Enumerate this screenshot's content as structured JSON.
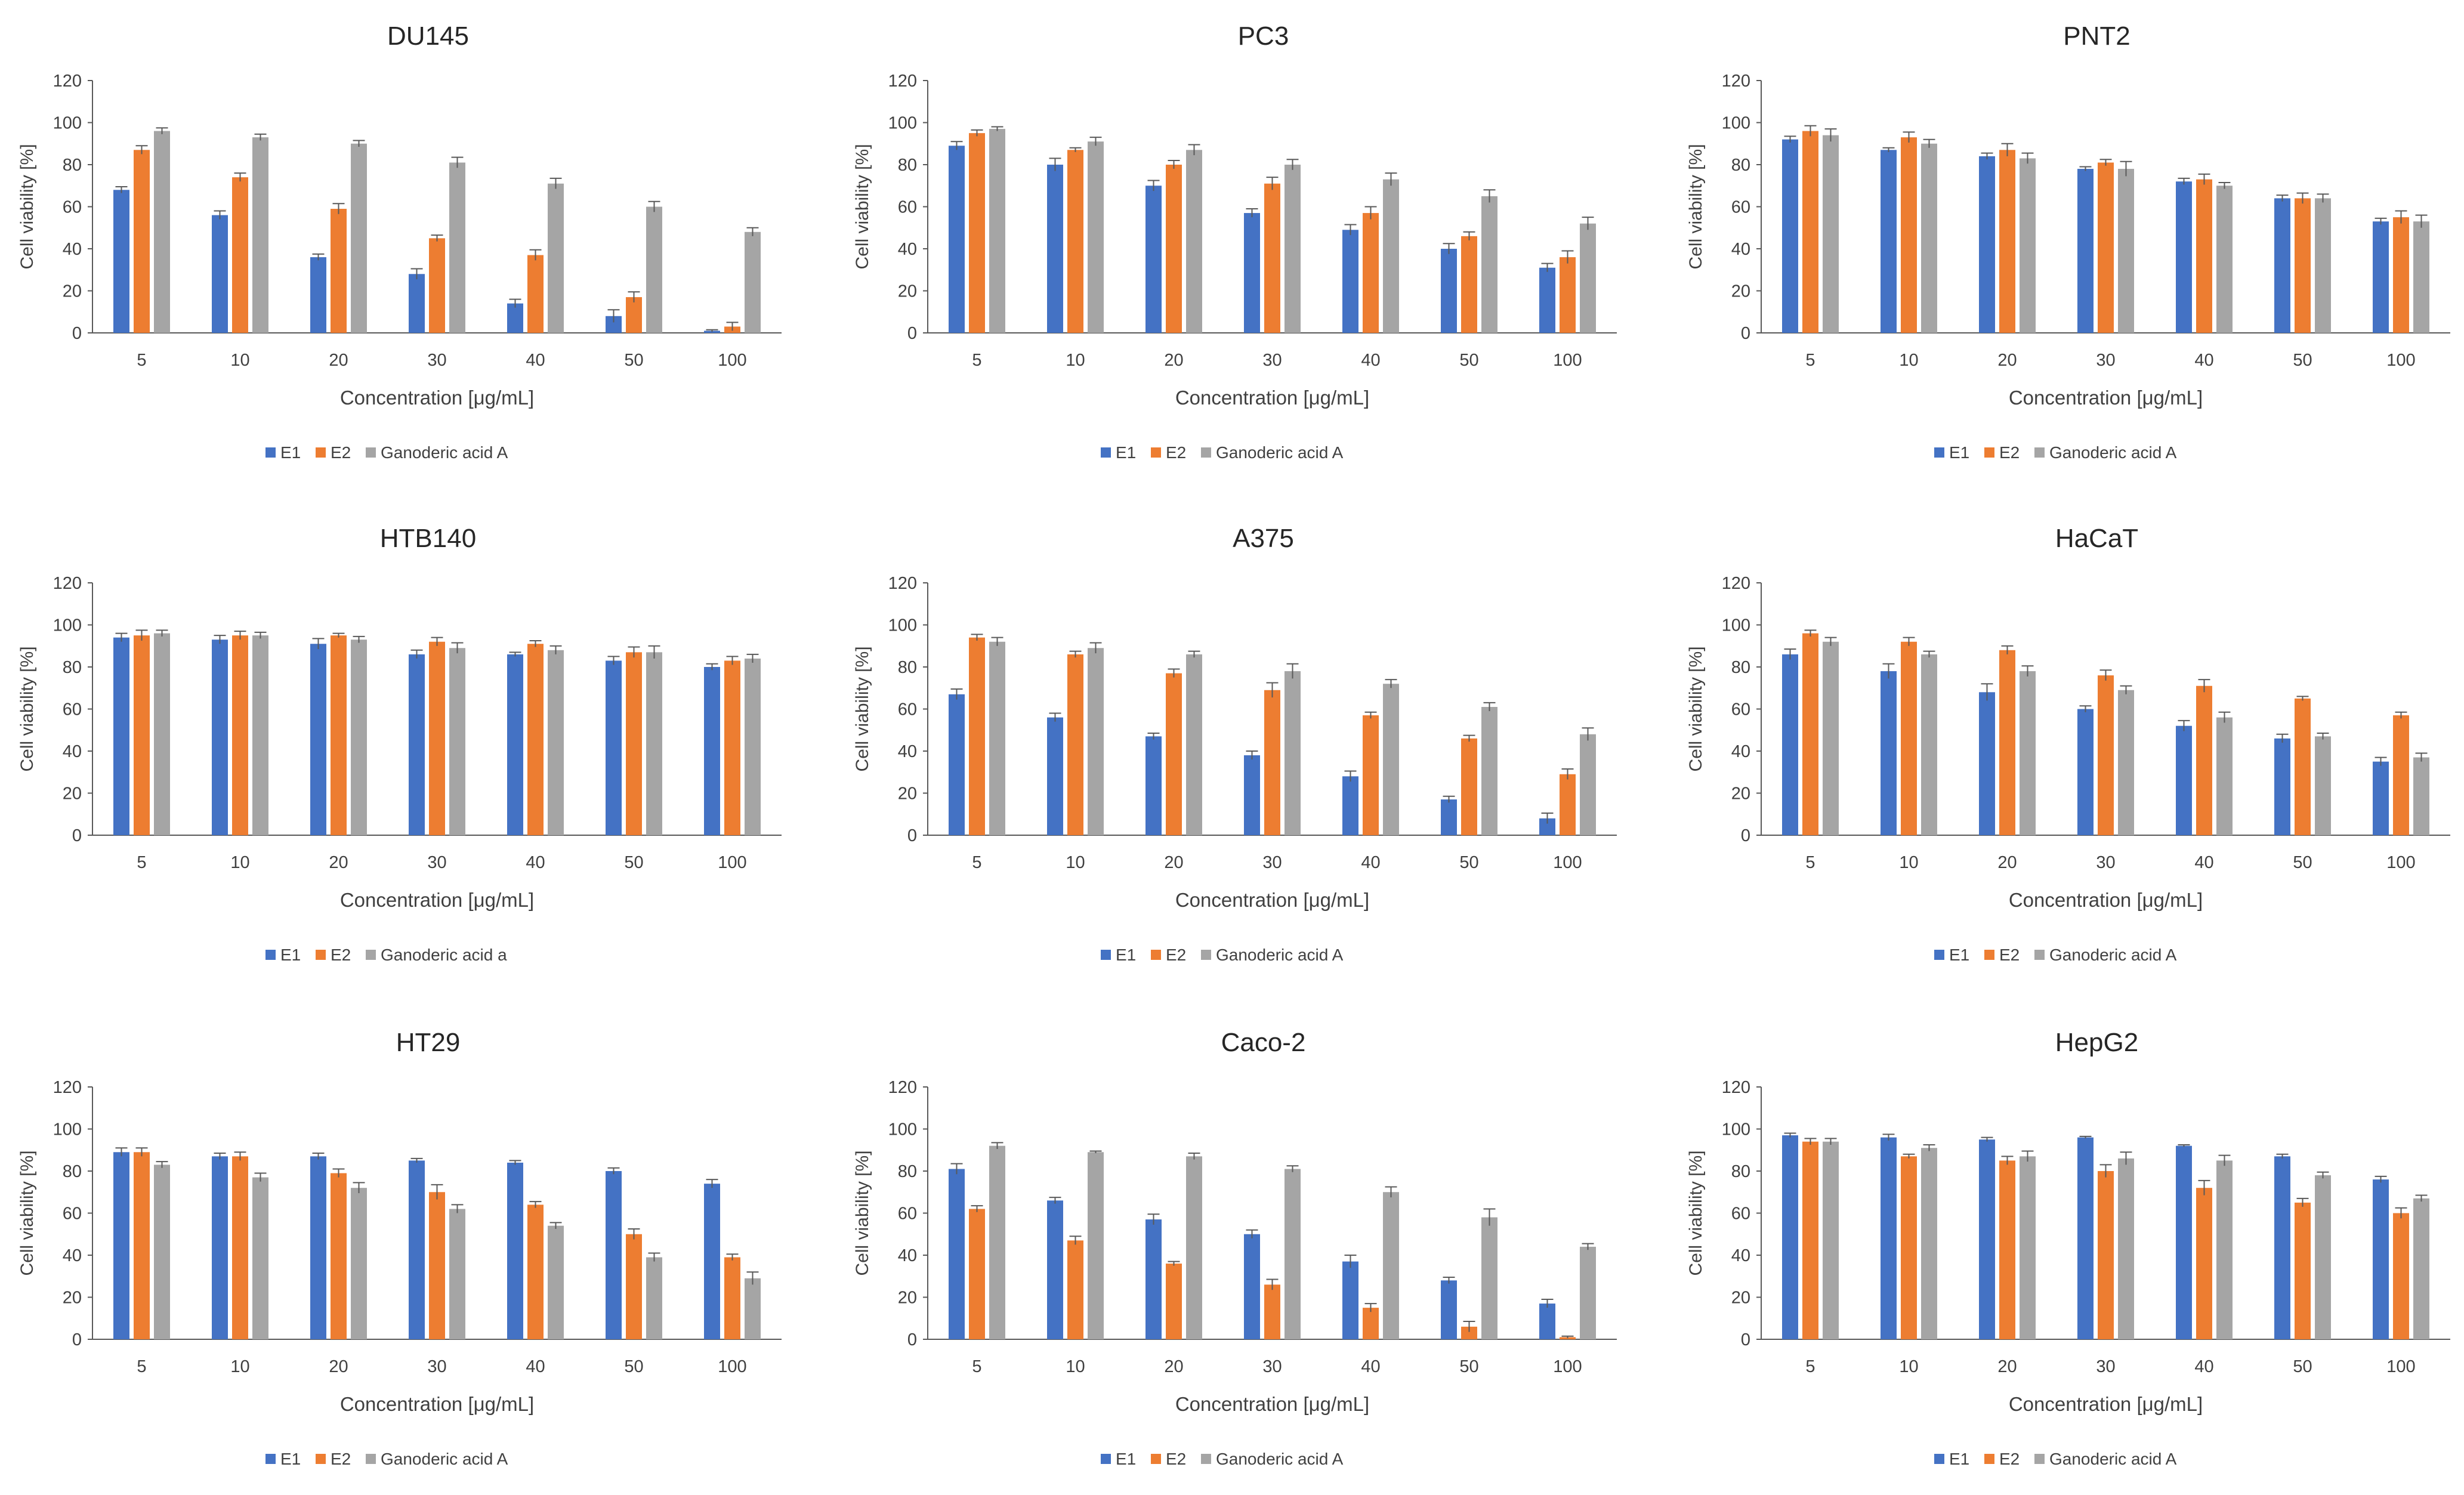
{
  "figure": {
    "colors": {
      "E1": "#4472c4",
      "E2": "#ed7d31",
      "Ganoderic acid A": "#a5a5a5",
      "axis": "#595959",
      "error": "#595959"
    }
  },
  "chart_data": [
    {
      "type": "bar",
      "title": "DU145",
      "categories": [
        "5",
        "10",
        "20",
        "30",
        "40",
        "50",
        "100"
      ],
      "series": [
        {
          "name": "E1",
          "values": [
            68,
            56,
            36,
            28,
            14,
            8,
            1
          ],
          "errors": [
            1.5,
            2,
            1.5,
            2.5,
            2,
            3,
            0.5
          ]
        },
        {
          "name": "E2",
          "values": [
            87,
            74,
            59,
            45,
            37,
            17,
            3
          ],
          "errors": [
            2,
            2,
            2.5,
            1.5,
            2.5,
            2.5,
            2
          ]
        },
        {
          "name": "Ganoderic acid A",
          "values": [
            96,
            93,
            90,
            81,
            71,
            60,
            48
          ],
          "errors": [
            1.5,
            1.5,
            1.5,
            2.5,
            2.5,
            2.5,
            2
          ]
        }
      ],
      "xlabel": "Concentration [μg/mL]",
      "ylabel": "Cell viability [%]",
      "ylim": [
        0,
        120
      ],
      "yticks": [
        "0",
        "20",
        "40",
        "60",
        "80",
        "100",
        "120"
      ]
    },
    {
      "type": "bar",
      "title": "PC3",
      "categories": [
        "5",
        "10",
        "20",
        "30",
        "40",
        "50",
        "100"
      ],
      "series": [
        {
          "name": "E1",
          "values": [
            89,
            80,
            70,
            57,
            49,
            40,
            31
          ],
          "errors": [
            2,
            3,
            2.5,
            2,
            2.5,
            2.5,
            2
          ]
        },
        {
          "name": "E2",
          "values": [
            95,
            87,
            80,
            71,
            57,
            46,
            36
          ],
          "errors": [
            1.5,
            1,
            2,
            3,
            3,
            2,
            3
          ]
        },
        {
          "name": "Ganoderic acid A",
          "values": [
            97,
            91,
            87,
            80,
            73,
            65,
            52
          ],
          "errors": [
            1,
            2,
            2.5,
            2.5,
            3,
            3,
            3
          ]
        }
      ],
      "xlabel": "Concentration [μg/mL]",
      "ylabel": "Cell viability [%]",
      "ylim": [
        0,
        120
      ],
      "yticks": [
        "0",
        "20",
        "40",
        "60",
        "80",
        "100",
        "120"
      ]
    },
    {
      "type": "bar",
      "title": "PNT2",
      "categories": [
        "5",
        "10",
        "20",
        "30",
        "40",
        "50",
        "100"
      ],
      "series": [
        {
          "name": "E1",
          "values": [
            92,
            87,
            84,
            78,
            72,
            64,
            53
          ],
          "errors": [
            1.5,
            1,
            1.5,
            1,
            1.5,
            1.5,
            1.5
          ]
        },
        {
          "name": "E2",
          "values": [
            96,
            93,
            87,
            81,
            73,
            64,
            55
          ],
          "errors": [
            2.5,
            2.5,
            3,
            1.5,
            2.5,
            2.5,
            3
          ]
        },
        {
          "name": "Ganoderic acid A",
          "values": [
            94,
            90,
            83,
            78,
            70,
            64,
            53
          ],
          "errors": [
            3,
            2,
            2.5,
            3.5,
            1.5,
            2,
            3
          ]
        }
      ],
      "xlabel": "Concentration [μg/mL]",
      "ylabel": "Cell viability [%]",
      "ylim": [
        0,
        120
      ],
      "yticks": [
        "0",
        "20",
        "40",
        "60",
        "80",
        "100",
        "120"
      ]
    },
    {
      "type": "bar",
      "title": "HTB140",
      "categories": [
        "5",
        "10",
        "20",
        "30",
        "40",
        "50",
        "100"
      ],
      "series": [
        {
          "name": "E1",
          "values": [
            94,
            93,
            91,
            86,
            86,
            83,
            80
          ],
          "errors": [
            2,
            2,
            2.5,
            2,
            1,
            2,
            1.5
          ]
        },
        {
          "name": "E2",
          "values": [
            95,
            95,
            95,
            92,
            91,
            87,
            83
          ],
          "errors": [
            2.5,
            2,
            1,
            2,
            1.5,
            2.5,
            2
          ]
        },
        {
          "name": "Ganoderic acid a",
          "values": [
            96,
            95,
            93,
            89,
            88,
            87,
            84
          ],
          "errors": [
            1.5,
            1.5,
            1.5,
            2.5,
            2,
            3,
            2
          ]
        }
      ],
      "xlabel": "Concentration [μg/mL]",
      "ylabel": "Cell viability [%]",
      "ylim": [
        0,
        120
      ],
      "yticks": [
        "0",
        "20",
        "40",
        "60",
        "80",
        "100",
        "120"
      ]
    },
    {
      "type": "bar",
      "title": "A375",
      "categories": [
        "5",
        "10",
        "20",
        "30",
        "40",
        "50",
        "100"
      ],
      "series": [
        {
          "name": "E1",
          "values": [
            67,
            56,
            47,
            38,
            28,
            17,
            8
          ],
          "errors": [
            2.5,
            2,
            1.5,
            2,
            2.5,
            1.5,
            2.5
          ]
        },
        {
          "name": "E2",
          "values": [
            94,
            86,
            77,
            69,
            57,
            46,
            29
          ],
          "errors": [
            1.5,
            1.5,
            2,
            3.5,
            1.5,
            1.5,
            2.5
          ]
        },
        {
          "name": "Ganoderic acid A",
          "values": [
            92,
            89,
            86,
            78,
            72,
            61,
            48
          ],
          "errors": [
            2,
            2.5,
            1.5,
            3.5,
            2,
            2,
            3
          ]
        }
      ],
      "xlabel": "Concentration [μg/mL]",
      "ylabel": "Cell viability [%]",
      "ylim": [
        0,
        120
      ],
      "yticks": [
        "0",
        "20",
        "40",
        "60",
        "80",
        "100",
        "120"
      ]
    },
    {
      "type": "bar",
      "title": "HaCaT",
      "categories": [
        "5",
        "10",
        "20",
        "30",
        "40",
        "50",
        "100"
      ],
      "series": [
        {
          "name": "E1",
          "values": [
            86,
            78,
            68,
            60,
            52,
            46,
            35
          ],
          "errors": [
            2.5,
            3.5,
            4,
            1.5,
            2.5,
            2,
            2
          ]
        },
        {
          "name": "E2",
          "values": [
            96,
            92,
            88,
            76,
            71,
            65,
            57
          ],
          "errors": [
            1.5,
            2,
            2,
            2.5,
            3,
            1,
            1.5
          ]
        },
        {
          "name": "Ganoderic acid A",
          "values": [
            92,
            86,
            78,
            69,
            56,
            47,
            37
          ],
          "errors": [
            2,
            1.5,
            2.5,
            2,
            2.5,
            1.5,
            2
          ]
        }
      ],
      "xlabel": "Concentration [μg/mL]",
      "ylabel": "Cell viability [%]",
      "ylim": [
        0,
        120
      ],
      "yticks": [
        "0",
        "20",
        "40",
        "60",
        "80",
        "100",
        "120"
      ]
    },
    {
      "type": "bar",
      "title": "HT29",
      "categories": [
        "5",
        "10",
        "20",
        "30",
        "40",
        "50",
        "100"
      ],
      "series": [
        {
          "name": "E1",
          "values": [
            89,
            87,
            87,
            85,
            84,
            80,
            74
          ],
          "errors": [
            2,
            1.5,
            1.5,
            1,
            1,
            1.5,
            2
          ]
        },
        {
          "name": "E2",
          "values": [
            89,
            87,
            79,
            70,
            64,
            50,
            39
          ],
          "errors": [
            2,
            2,
            2,
            3.5,
            1.5,
            2.5,
            1.5
          ]
        },
        {
          "name": "Ganoderic acid A",
          "values": [
            83,
            77,
            72,
            62,
            54,
            39,
            29
          ],
          "errors": [
            1.5,
            2,
            2.5,
            2,
            1.5,
            2,
            3
          ]
        }
      ],
      "xlabel": "Concentration [μg/mL]",
      "ylabel": "Cell viability [%]",
      "ylim": [
        0,
        120
      ],
      "yticks": [
        "0",
        "20",
        "40",
        "60",
        "80",
        "100",
        "120"
      ]
    },
    {
      "type": "bar",
      "title": "Caco-2",
      "categories": [
        "5",
        "10",
        "20",
        "30",
        "40",
        "50",
        "100"
      ],
      "series": [
        {
          "name": "E1",
          "values": [
            81,
            66,
            57,
            50,
            37,
            28,
            17
          ],
          "errors": [
            2.5,
            1.5,
            2.5,
            2,
            3,
            1.5,
            2
          ]
        },
        {
          "name": "E2",
          "values": [
            62,
            47,
            36,
            26,
            15,
            6,
            1
          ],
          "errors": [
            1.5,
            2,
            1,
            2.5,
            2,
            2.5,
            0.5
          ]
        },
        {
          "name": "Ganoderic acid A",
          "values": [
            92,
            89,
            87,
            81,
            70,
            58,
            44
          ],
          "errors": [
            1.5,
            0.5,
            1.5,
            1.5,
            2.5,
            4,
            1.5
          ]
        }
      ],
      "xlabel": "Concentration [μg/mL]",
      "ylabel": "Cell viability [%]",
      "ylim": [
        0,
        120
      ],
      "yticks": [
        "0",
        "20",
        "40",
        "60",
        "80",
        "100",
        "120"
      ]
    },
    {
      "type": "bar",
      "title": "HepG2",
      "categories": [
        "5",
        "10",
        "20",
        "30",
        "40",
        "50",
        "100"
      ],
      "series": [
        {
          "name": "E1",
          "values": [
            97,
            96,
            95,
            96,
            92,
            87,
            76
          ],
          "errors": [
            1,
            1.5,
            1,
            0.5,
            0.5,
            1,
            1.5
          ]
        },
        {
          "name": "E2",
          "values": [
            94,
            87,
            85,
            80,
            72,
            65,
            60
          ],
          "errors": [
            1.5,
            1,
            2,
            3,
            3.5,
            2,
            2.5
          ]
        },
        {
          "name": "Ganoderic acid A",
          "values": [
            94,
            91,
            87,
            86,
            85,
            78,
            67
          ],
          "errors": [
            1.5,
            1.5,
            2.5,
            3,
            2.5,
            1.5,
            1.5
          ]
        }
      ],
      "xlabel": "Concentration [μg/mL]",
      "ylabel": "Cell viability [%]",
      "ylim": [
        0,
        120
      ],
      "yticks": [
        "0",
        "20",
        "40",
        "60",
        "80",
        "100",
        "120"
      ]
    }
  ]
}
